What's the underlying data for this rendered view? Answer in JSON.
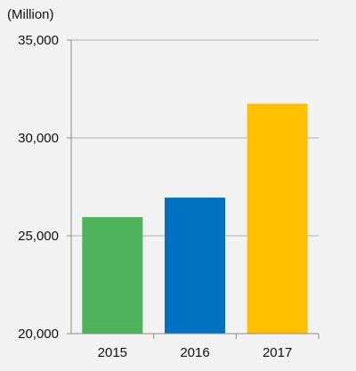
{
  "chart_data": {
    "type": "bar",
    "unit_label": "(Million)",
    "categories": [
      "2015",
      "2016",
      "2017"
    ],
    "values": [
      25950,
      26950,
      31750
    ],
    "bar_colors": [
      "#4db35a",
      "#0070c0",
      "#ffc000"
    ],
    "ylim": [
      20000,
      35000
    ],
    "yticks": [
      20000,
      25000,
      30000,
      35000
    ],
    "ytick_labels": [
      "20,000",
      "25,000",
      "30,000",
      "35,000"
    ],
    "grid": true,
    "legend": "none"
  }
}
